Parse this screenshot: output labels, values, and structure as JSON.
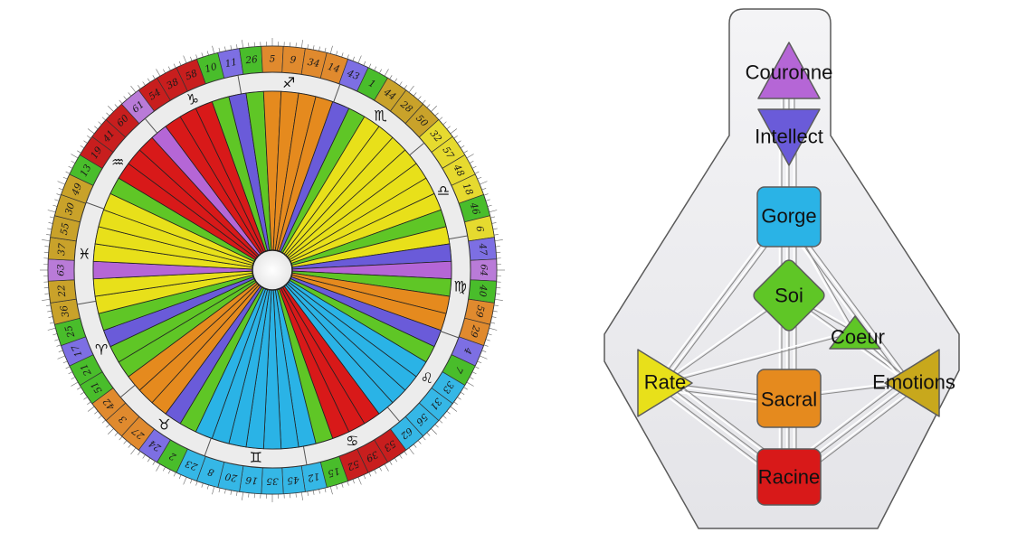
{
  "colors": {
    "purple": "#b566d6",
    "indigo": "#6a5bd9",
    "blue": "#2ab3e6",
    "green": "#5fc626",
    "yellow": "#e8e01a",
    "orange": "#e58a1e",
    "red": "#d81919",
    "ochre": "#c8a81c",
    "gate_purple": "#b97bd8",
    "gate_indigo": "#7d6fe3",
    "gate_blue": "#35b7e6",
    "gate_green": "#49bd2b",
    "gate_yellow": "#e6da2f",
    "gate_orange": "#e08a2e",
    "gate_red": "#c81e1e",
    "gate_ochre": "#c9a22a"
  },
  "wheel": {
    "gates": [
      {
        "n": "10",
        "c": "gate_green"
      },
      {
        "n": "11",
        "c": "gate_indigo"
      },
      {
        "n": "26",
        "c": "gate_green"
      },
      {
        "n": "5",
        "c": "gate_orange"
      },
      {
        "n": "9",
        "c": "gate_orange"
      },
      {
        "n": "34",
        "c": "gate_orange"
      },
      {
        "n": "14",
        "c": "gate_orange"
      },
      {
        "n": "43",
        "c": "gate_indigo"
      },
      {
        "n": "1",
        "c": "gate_green"
      },
      {
        "n": "44",
        "c": "gate_ochre"
      },
      {
        "n": "28",
        "c": "gate_ochre"
      },
      {
        "n": "50",
        "c": "gate_ochre"
      },
      {
        "n": "32",
        "c": "gate_yellow"
      },
      {
        "n": "57",
        "c": "gate_yellow"
      },
      {
        "n": "48",
        "c": "gate_yellow"
      },
      {
        "n": "18",
        "c": "gate_yellow"
      },
      {
        "n": "46",
        "c": "gate_green"
      },
      {
        "n": "6",
        "c": "gate_yellow"
      },
      {
        "n": "47",
        "c": "gate_indigo"
      },
      {
        "n": "64",
        "c": "gate_purple"
      },
      {
        "n": "40",
        "c": "gate_green"
      },
      {
        "n": "59",
        "c": "gate_orange"
      },
      {
        "n": "29",
        "c": "gate_orange"
      },
      {
        "n": "4",
        "c": "gate_indigo"
      },
      {
        "n": "7",
        "c": "gate_green"
      },
      {
        "n": "33",
        "c": "gate_blue"
      },
      {
        "n": "31",
        "c": "gate_blue"
      },
      {
        "n": "56",
        "c": "gate_blue"
      },
      {
        "n": "62",
        "c": "gate_blue"
      },
      {
        "n": "53",
        "c": "gate_red"
      },
      {
        "n": "39",
        "c": "gate_red"
      },
      {
        "n": "52",
        "c": "gate_red"
      },
      {
        "n": "15",
        "c": "gate_green"
      },
      {
        "n": "12",
        "c": "gate_blue"
      },
      {
        "n": "45",
        "c": "gate_blue"
      },
      {
        "n": "35",
        "c": "gate_blue"
      },
      {
        "n": "16",
        "c": "gate_blue"
      },
      {
        "n": "20",
        "c": "gate_blue"
      },
      {
        "n": "8",
        "c": "gate_blue"
      },
      {
        "n": "23",
        "c": "gate_blue"
      },
      {
        "n": "2",
        "c": "gate_green"
      },
      {
        "n": "24",
        "c": "gate_indigo"
      },
      {
        "n": "27",
        "c": "gate_orange"
      },
      {
        "n": "3",
        "c": "gate_orange"
      },
      {
        "n": "42",
        "c": "gate_orange"
      },
      {
        "n": "51",
        "c": "gate_green"
      },
      {
        "n": "21",
        "c": "gate_green"
      },
      {
        "n": "17",
        "c": "gate_indigo"
      },
      {
        "n": "25",
        "c": "gate_green"
      },
      {
        "n": "36",
        "c": "gate_ochre"
      },
      {
        "n": "22",
        "c": "gate_ochre"
      },
      {
        "n": "63",
        "c": "gate_purple"
      },
      {
        "n": "37",
        "c": "gate_ochre"
      },
      {
        "n": "55",
        "c": "gate_ochre"
      },
      {
        "n": "30",
        "c": "gate_ochre"
      },
      {
        "n": "49",
        "c": "gate_ochre"
      },
      {
        "n": "13",
        "c": "gate_green"
      },
      {
        "n": "19",
        "c": "gate_red"
      },
      {
        "n": "41",
        "c": "gate_red"
      },
      {
        "n": "60",
        "c": "gate_red"
      },
      {
        "n": "61",
        "c": "gate_purple"
      },
      {
        "n": "54",
        "c": "gate_red"
      },
      {
        "n": "38",
        "c": "gate_red"
      },
      {
        "n": "58",
        "c": "gate_red"
      }
    ],
    "signs": [
      "♐",
      "♏",
      "♎",
      "♍",
      "♌",
      "♋",
      "♊",
      "♉",
      "♈",
      "♓",
      "♒",
      "♑"
    ],
    "sectors": [
      "green",
      "indigo",
      "green",
      "orange",
      "orange",
      "orange",
      "orange",
      "indigo",
      "green",
      "yellow",
      "yellow",
      "yellow",
      "yellow",
      "yellow",
      "yellow",
      "yellow",
      "green",
      "yellow",
      "indigo",
      "purple",
      "green",
      "orange",
      "orange",
      "indigo",
      "green",
      "blue",
      "blue",
      "blue",
      "blue",
      "red",
      "red",
      "red",
      "green",
      "blue",
      "blue",
      "blue",
      "blue",
      "blue",
      "blue",
      "blue",
      "green",
      "indigo",
      "orange",
      "orange",
      "orange",
      "green",
      "green",
      "indigo",
      "green",
      "yellow",
      "yellow",
      "purple",
      "yellow",
      "yellow",
      "yellow",
      "yellow",
      "green",
      "red",
      "red",
      "red",
      "purple",
      "red",
      "red",
      "red"
    ]
  },
  "bodygraph": {
    "centers": [
      {
        "key": "couronne",
        "label": "Couronne",
        "color": "purple"
      },
      {
        "key": "intellect",
        "label": "Intellect",
        "color": "indigo"
      },
      {
        "key": "gorge",
        "label": "Gorge",
        "color": "blue"
      },
      {
        "key": "soi",
        "label": "Soi",
        "color": "green"
      },
      {
        "key": "coeur",
        "label": "Coeur",
        "color": "green"
      },
      {
        "key": "rate",
        "label": "Rate",
        "color": "yellow"
      },
      {
        "key": "sacral",
        "label": "Sacral",
        "color": "orange"
      },
      {
        "key": "emotions",
        "label": "Emotions",
        "color": "ochre"
      },
      {
        "key": "racine",
        "label": "Racine",
        "color": "red"
      }
    ]
  }
}
